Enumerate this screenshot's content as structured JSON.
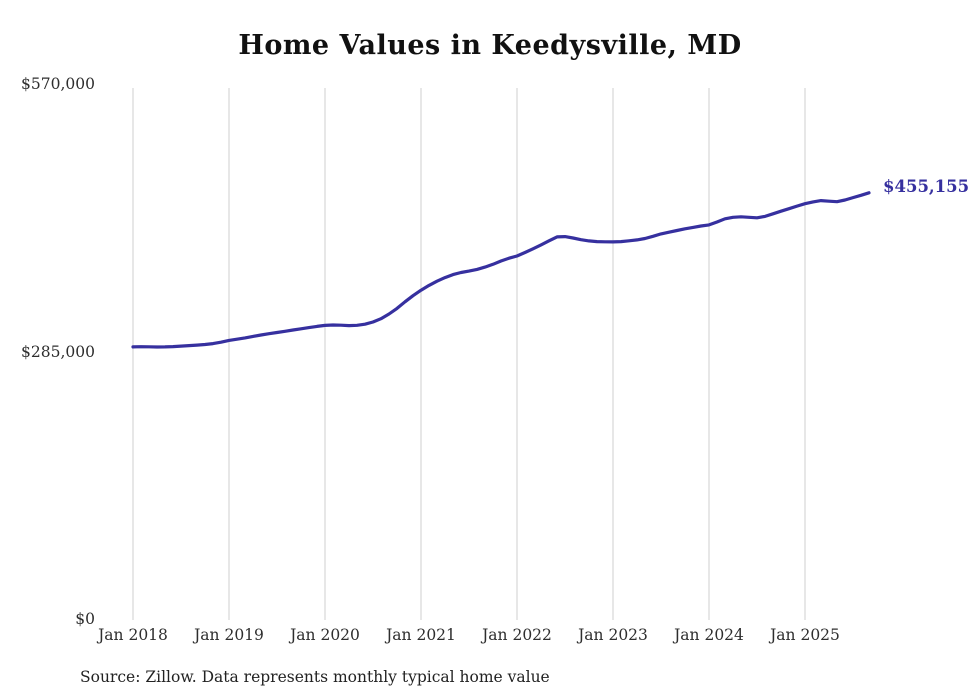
{
  "chart_data": {
    "type": "line",
    "title": "Home Values in Keedysville, MD",
    "x_tick_labels": [
      "Jan 2018",
      "Jan 2019",
      "Jan 2020",
      "Jan 2021",
      "Jan 2022",
      "Jan 2023",
      "Jan 2024",
      "Jan 2025"
    ],
    "y_ticks": [
      {
        "value": 0,
        "label": "$0"
      },
      {
        "value": 285000,
        "label": "$285,000"
      },
      {
        "value": 570000,
        "label": "$570,000"
      }
    ],
    "ylim": [
      0,
      570000
    ],
    "x_start": "2018-01",
    "x_end": "2025-09",
    "frequency": "monthly",
    "values": [
      291000,
      291200,
      291100,
      290900,
      291000,
      291300,
      291800,
      292300,
      292900,
      293500,
      294500,
      296000,
      297900,
      299200,
      300600,
      302100,
      303600,
      305000,
      306300,
      307600,
      309000,
      310300,
      311500,
      312800,
      313900,
      314300,
      314100,
      313700,
      314000,
      315200,
      317500,
      321000,
      326000,
      332000,
      339000,
      345500,
      351400,
      356500,
      361000,
      364800,
      368000,
      370200,
      371700,
      373500,
      376000,
      379000,
      382500,
      385500,
      387800,
      391500,
      395500,
      399600,
      404000,
      408200,
      408500,
      407000,
      405200,
      403900,
      403200,
      402900,
      402800,
      403200,
      404000,
      405000,
      406500,
      408800,
      411400,
      413200,
      415000,
      416800,
      418300,
      419800,
      421000,
      424000,
      427500,
      429000,
      429600,
      429000,
      428500,
      430000,
      432800,
      435500,
      438200,
      441000,
      443500,
      445500,
      446800,
      446200,
      445700,
      447500,
      450000,
      452500,
      455155
    ],
    "end_label": "$455,155",
    "line_color": "#36309f",
    "grid_color": "#cfcfcf",
    "grid_on": true,
    "legend": "none",
    "source": "Source: Zillow. Data represents monthly typical home value"
  }
}
